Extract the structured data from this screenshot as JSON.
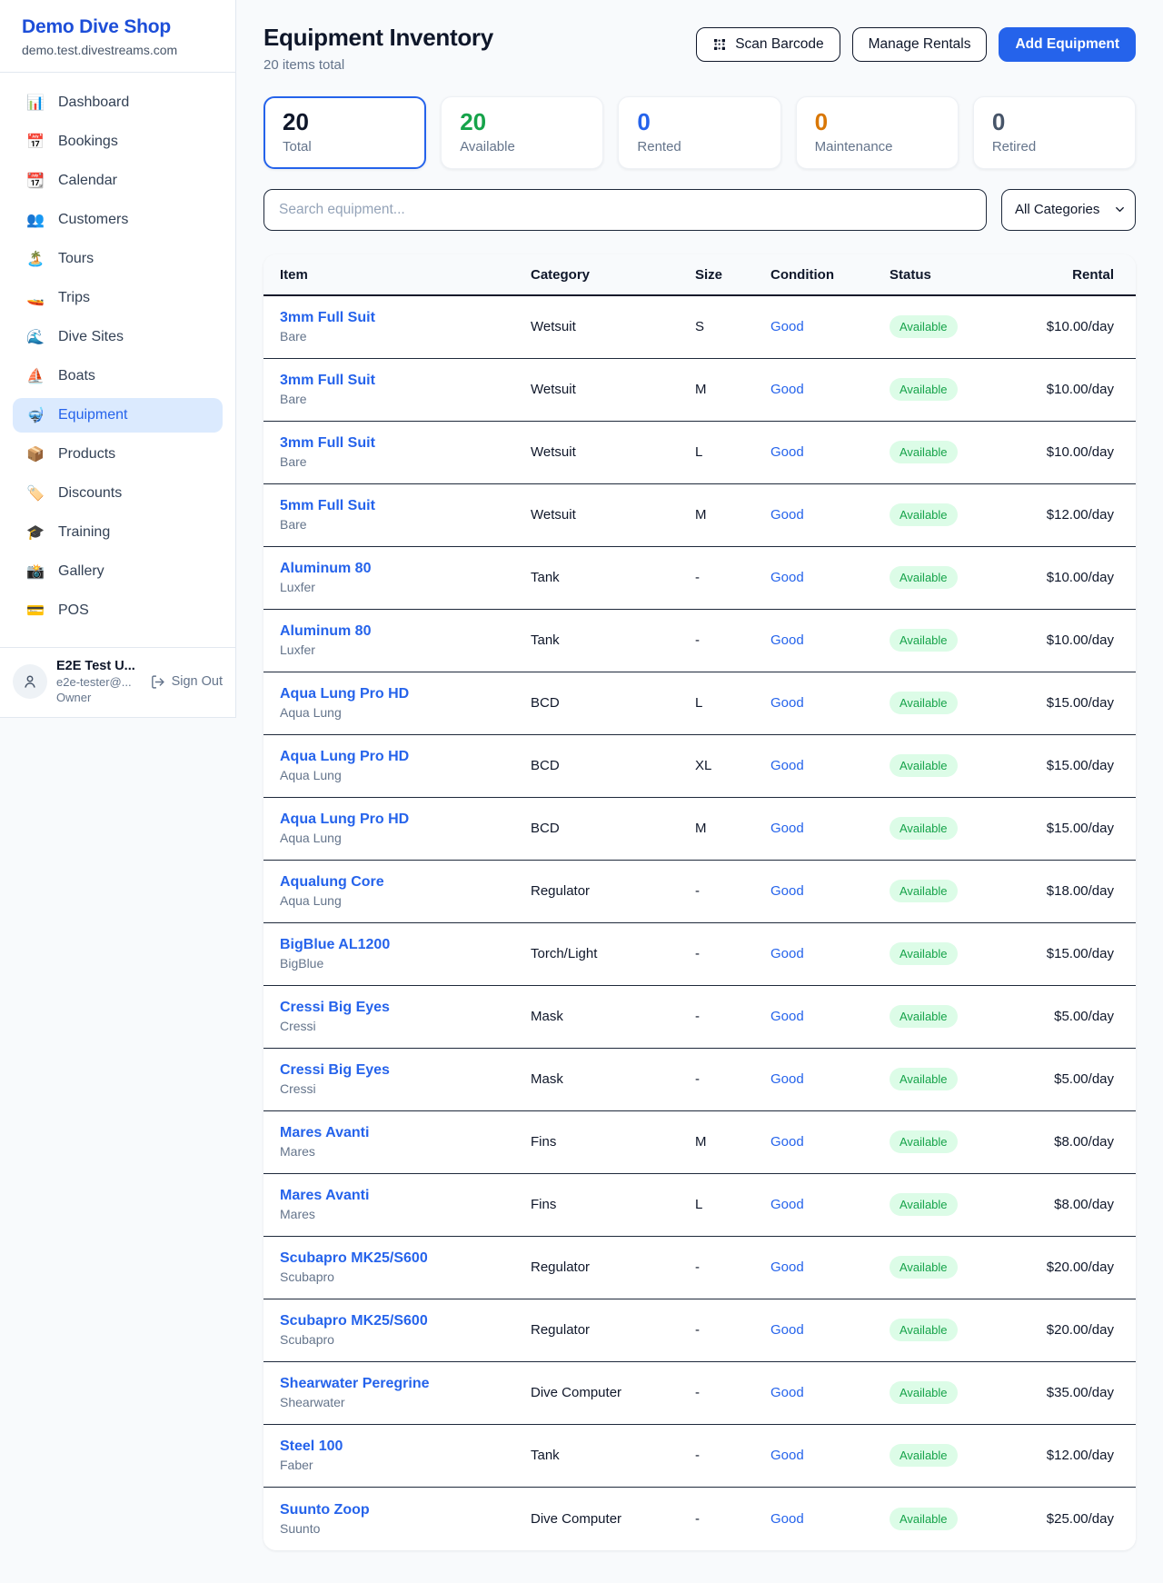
{
  "sidebar": {
    "brand": {
      "name": "Demo Dive Shop",
      "domain": "demo.test.divestreams.com"
    },
    "nav": [
      {
        "icon": "📊",
        "icon_name": "chart-icon",
        "label": "Dashboard",
        "active": false
      },
      {
        "icon": "📅",
        "icon_name": "bookings-calendar-icon",
        "label": "Bookings",
        "active": false
      },
      {
        "icon": "📆",
        "icon_name": "calendar-icon",
        "label": "Calendar",
        "active": false
      },
      {
        "icon": "👥",
        "icon_name": "customers-icon",
        "label": "Customers",
        "active": false
      },
      {
        "icon": "🏝️",
        "icon_name": "island-icon",
        "label": "Tours",
        "active": false
      },
      {
        "icon": "🚤",
        "icon_name": "speedboat-icon",
        "label": "Trips",
        "active": false
      },
      {
        "icon": "🌊",
        "icon_name": "wave-icon",
        "label": "Dive Sites",
        "active": false
      },
      {
        "icon": "⛵",
        "icon_name": "sailboat-icon",
        "label": "Boats",
        "active": false
      },
      {
        "icon": "🤿",
        "icon_name": "dive-mask-icon",
        "label": "Equipment",
        "active": true
      },
      {
        "icon": "📦",
        "icon_name": "package-icon",
        "label": "Products",
        "active": false
      },
      {
        "icon": "🏷️",
        "icon_name": "tag-icon",
        "label": "Discounts",
        "active": false
      },
      {
        "icon": "🎓",
        "icon_name": "graduation-cap-icon",
        "label": "Training",
        "active": false
      },
      {
        "icon": "📸",
        "icon_name": "camera-icon",
        "label": "Gallery",
        "active": false
      },
      {
        "icon": "💳",
        "icon_name": "credit-card-icon",
        "label": "POS",
        "active": false
      }
    ],
    "user": {
      "name": "E2E Test U...",
      "email": "e2e-tester@...",
      "role": "Owner",
      "sign_out_label": "Sign Out"
    }
  },
  "header": {
    "title": "Equipment Inventory",
    "subtitle": "20 items total",
    "scan_barcode_label": "Scan Barcode",
    "manage_rentals_label": "Manage Rentals",
    "add_equipment_label": "Add Equipment"
  },
  "stats": [
    {
      "value": "20",
      "label": "Total",
      "color": "#0f172a",
      "selected": true
    },
    {
      "value": "20",
      "label": "Available",
      "color": "#16a34a",
      "selected": false
    },
    {
      "value": "0",
      "label": "Rented",
      "color": "#2563eb",
      "selected": false
    },
    {
      "value": "0",
      "label": "Maintenance",
      "color": "#d97706",
      "selected": false
    },
    {
      "value": "0",
      "label": "Retired",
      "color": "#475569",
      "selected": false
    }
  ],
  "filters": {
    "search_placeholder": "Search equipment...",
    "category_selected": "All Categories"
  },
  "table": {
    "columns": [
      "Item",
      "Category",
      "Size",
      "Condition",
      "Status",
      "Rental"
    ],
    "rows": [
      {
        "name": "3mm Full Suit",
        "brand": "Bare",
        "category": "Wetsuit",
        "size": "S",
        "condition": "Good",
        "status": "Available",
        "rental": "$10.00/day"
      },
      {
        "name": "3mm Full Suit",
        "brand": "Bare",
        "category": "Wetsuit",
        "size": "M",
        "condition": "Good",
        "status": "Available",
        "rental": "$10.00/day"
      },
      {
        "name": "3mm Full Suit",
        "brand": "Bare",
        "category": "Wetsuit",
        "size": "L",
        "condition": "Good",
        "status": "Available",
        "rental": "$10.00/day"
      },
      {
        "name": "5mm Full Suit",
        "brand": "Bare",
        "category": "Wetsuit",
        "size": "M",
        "condition": "Good",
        "status": "Available",
        "rental": "$12.00/day"
      },
      {
        "name": "Aluminum 80",
        "brand": "Luxfer",
        "category": "Tank",
        "size": "-",
        "condition": "Good",
        "status": "Available",
        "rental": "$10.00/day"
      },
      {
        "name": "Aluminum 80",
        "brand": "Luxfer",
        "category": "Tank",
        "size": "-",
        "condition": "Good",
        "status": "Available",
        "rental": "$10.00/day"
      },
      {
        "name": "Aqua Lung Pro HD",
        "brand": "Aqua Lung",
        "category": "BCD",
        "size": "L",
        "condition": "Good",
        "status": "Available",
        "rental": "$15.00/day"
      },
      {
        "name": "Aqua Lung Pro HD",
        "brand": "Aqua Lung",
        "category": "BCD",
        "size": "XL",
        "condition": "Good",
        "status": "Available",
        "rental": "$15.00/day"
      },
      {
        "name": "Aqua Lung Pro HD",
        "brand": "Aqua Lung",
        "category": "BCD",
        "size": "M",
        "condition": "Good",
        "status": "Available",
        "rental": "$15.00/day"
      },
      {
        "name": "Aqualung Core",
        "brand": "Aqua Lung",
        "category": "Regulator",
        "size": "-",
        "condition": "Good",
        "status": "Available",
        "rental": "$18.00/day"
      },
      {
        "name": "BigBlue AL1200",
        "brand": "BigBlue",
        "category": "Torch/Light",
        "size": "-",
        "condition": "Good",
        "status": "Available",
        "rental": "$15.00/day"
      },
      {
        "name": "Cressi Big Eyes",
        "brand": "Cressi",
        "category": "Mask",
        "size": "-",
        "condition": "Good",
        "status": "Available",
        "rental": "$5.00/day"
      },
      {
        "name": "Cressi Big Eyes",
        "brand": "Cressi",
        "category": "Mask",
        "size": "-",
        "condition": "Good",
        "status": "Available",
        "rental": "$5.00/day"
      },
      {
        "name": "Mares Avanti",
        "brand": "Mares",
        "category": "Fins",
        "size": "M",
        "condition": "Good",
        "status": "Available",
        "rental": "$8.00/day"
      },
      {
        "name": "Mares Avanti",
        "brand": "Mares",
        "category": "Fins",
        "size": "L",
        "condition": "Good",
        "status": "Available",
        "rental": "$8.00/day"
      },
      {
        "name": "Scubapro MK25/S600",
        "brand": "Scubapro",
        "category": "Regulator",
        "size": "-",
        "condition": "Good",
        "status": "Available",
        "rental": "$20.00/day"
      },
      {
        "name": "Scubapro MK25/S600",
        "brand": "Scubapro",
        "category": "Regulator",
        "size": "-",
        "condition": "Good",
        "status": "Available",
        "rental": "$20.00/day"
      },
      {
        "name": "Shearwater Peregrine",
        "brand": "Shearwater",
        "category": "Dive Computer",
        "size": "-",
        "condition": "Good",
        "status": "Available",
        "rental": "$35.00/day"
      },
      {
        "name": "Steel 100",
        "brand": "Faber",
        "category": "Tank",
        "size": "-",
        "condition": "Good",
        "status": "Available",
        "rental": "$12.00/day"
      },
      {
        "name": "Suunto Zoop",
        "brand": "Suunto",
        "category": "Dive Computer",
        "size": "-",
        "condition": "Good",
        "status": "Available",
        "rental": "$25.00/day"
      }
    ]
  }
}
